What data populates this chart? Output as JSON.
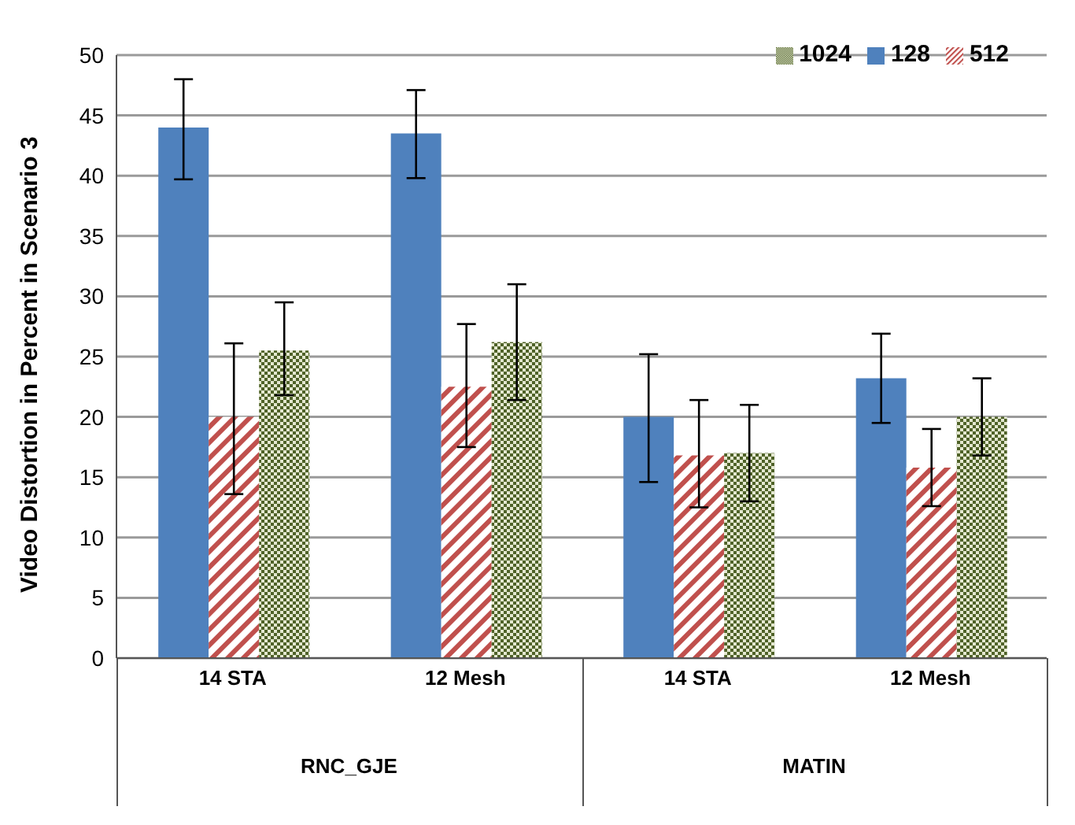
{
  "chart_data": {
    "type": "bar",
    "ylabel": "Video Distortion in Percent in Scenario 3",
    "categories": [
      "14 STA",
      "12 Mesh",
      "14 STA",
      "12 Mesh"
    ],
    "annotations": [
      "RNC_GJE",
      "MATIN"
    ],
    "series": [
      {
        "name": "128",
        "color": "#4f81bd",
        "values": [
          44,
          43.5,
          20,
          23.2
        ],
        "errors": [
          [
            39.7,
            48
          ],
          [
            39.8,
            47.1
          ],
          [
            14.6,
            25.2
          ],
          [
            19.5,
            26.9
          ]
        ]
      },
      {
        "name": "512",
        "color": "#c0504d",
        "values": [
          20,
          22.5,
          16.8,
          15.8
        ],
        "errors": [
          [
            13.6,
            26.1
          ],
          [
            17.5,
            27.7
          ],
          [
            12.5,
            21.4
          ],
          [
            12.6,
            19
          ]
        ]
      },
      {
        "name": "1024",
        "color": "#4f6228",
        "values": [
          25.5,
          26.2,
          17,
          20
        ],
        "errors": [
          [
            21.8,
            29.5
          ],
          [
            21.4,
            31
          ],
          [
            13,
            21
          ],
          [
            16.8,
            23.2
          ]
        ]
      }
    ],
    "ylim": [
      0,
      50
    ],
    "yticks": [
      0,
      5,
      10,
      15,
      20,
      25,
      30,
      35,
      40,
      45,
      50
    ],
    "grid": "y",
    "legend": "top right"
  }
}
